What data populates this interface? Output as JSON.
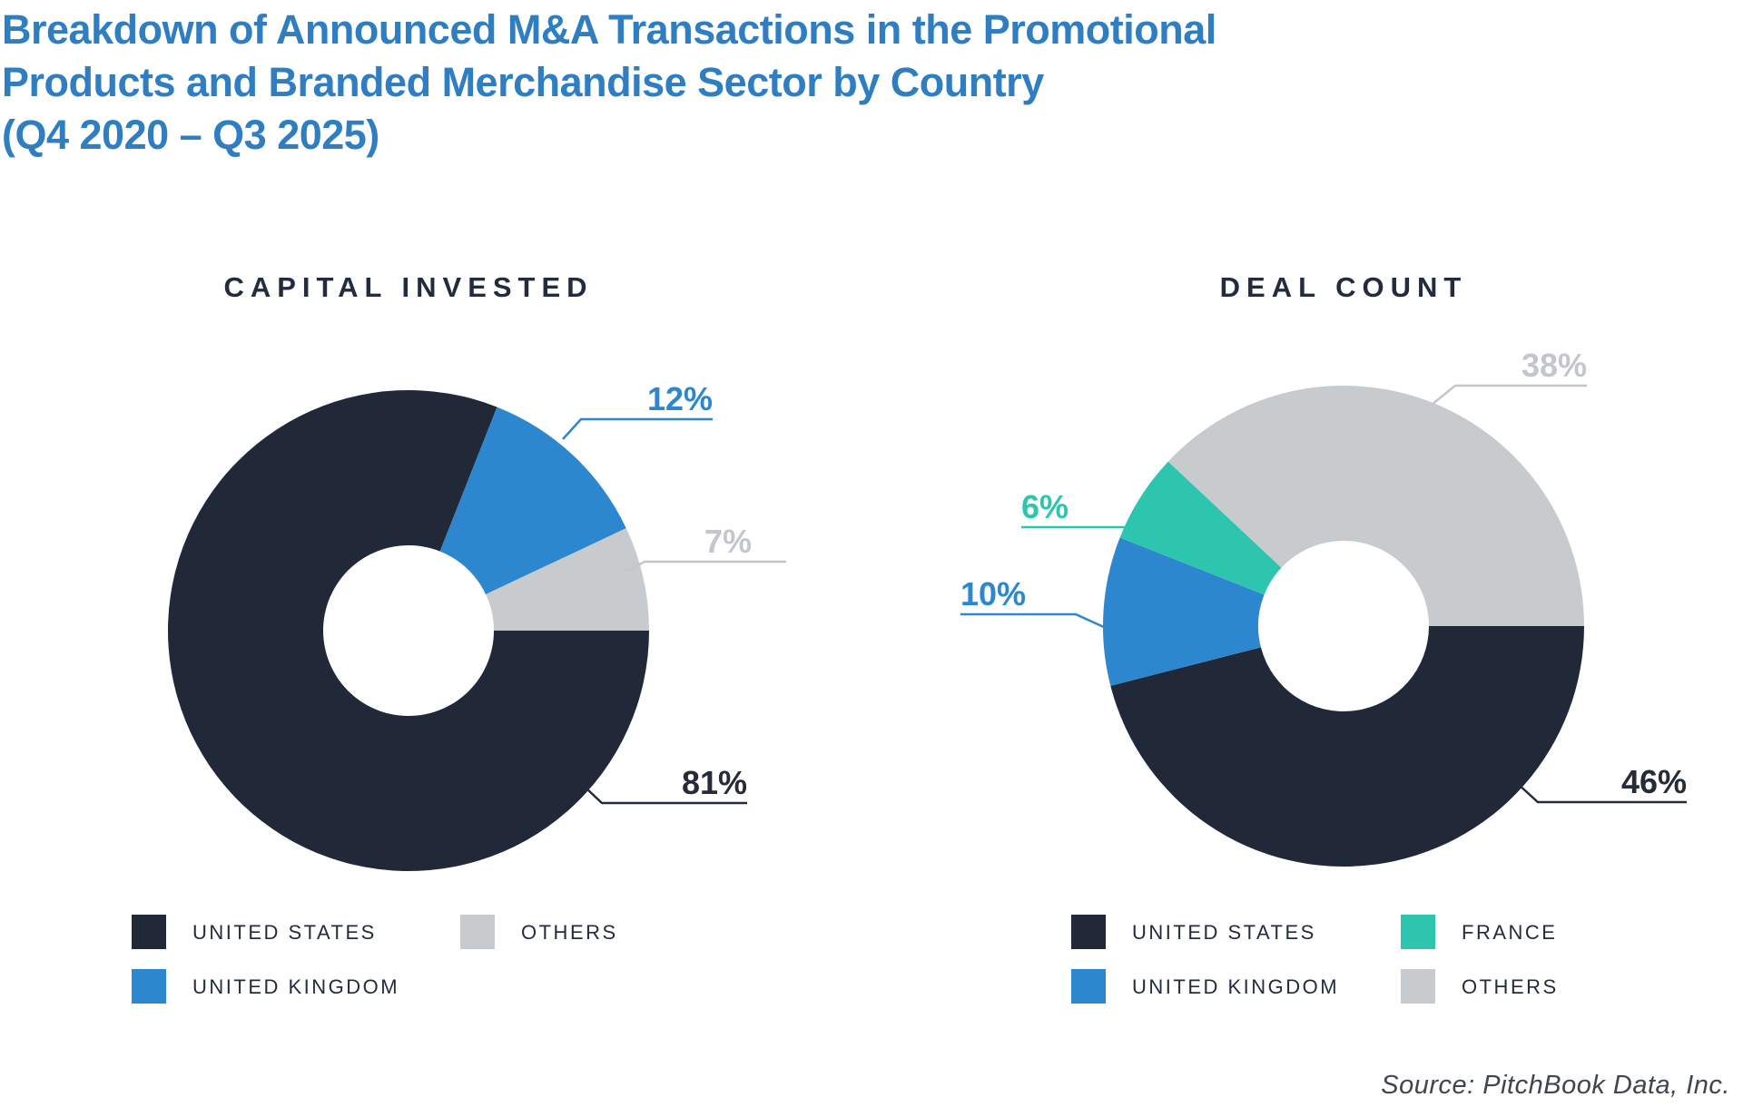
{
  "page_title": {
    "lines": [
      "Breakdown of Announced M&A Transactions in the Promotional",
      "Products and Branded Merchandise Sector by Country",
      "(Q4 2020 – Q3 2025)"
    ]
  },
  "colors": {
    "title_blue": "#2E7EC1",
    "navy": "#212939",
    "blue": "#2D87CE",
    "teal": "#2EC5AE",
    "gray": "#C8CBCE",
    "dark_label": "#262B38",
    "gray_label": "#C3C6CA",
    "navy_line": "#232B3E",
    "heading_navy": "#232B3E",
    "legend_text": "#232B3E",
    "source_gray": "#41454D",
    "background": "#FFFFFF"
  },
  "source_credit": "Source: PitchBook Data, Inc.",
  "chart_data": [
    {
      "type": "pie",
      "variant": "donut",
      "title": "CAPITAL INVESTED",
      "units": "percent",
      "start_angle_deg": 90,
      "direction": "clockwise",
      "slices": [
        {
          "label": "UNITED STATES",
          "value": 81,
          "color_key": "navy"
        },
        {
          "label": "UNITED KINGDOM",
          "value": 12,
          "color_key": "blue"
        },
        {
          "label": "OTHERS",
          "value": 7,
          "color_key": "gray"
        }
      ],
      "legend": [
        {
          "label": "UNITED STATES",
          "color_key": "navy",
          "col": 0,
          "row": 0
        },
        {
          "label": "OTHERS",
          "color_key": "gray",
          "col": 1,
          "row": 0
        },
        {
          "label": "UNITED KINGDOM",
          "color_key": "blue",
          "col": 0,
          "row": 1
        }
      ]
    },
    {
      "type": "pie",
      "variant": "donut",
      "title": "DEAL COUNT",
      "units": "percent",
      "start_angle_deg": 90,
      "direction": "clockwise",
      "slices": [
        {
          "label": "UNITED STATES",
          "value": 46,
          "color_key": "navy"
        },
        {
          "label": "UNITED KINGDOM",
          "value": 10,
          "color_key": "blue"
        },
        {
          "label": "FRANCE",
          "value": 6,
          "color_key": "teal"
        },
        {
          "label": "OTHERS",
          "value": 38,
          "color_key": "gray"
        }
      ],
      "legend": [
        {
          "label": "UNITED STATES",
          "color_key": "navy",
          "col": 0,
          "row": 0
        },
        {
          "label": "FRANCE",
          "color_key": "teal",
          "col": 1,
          "row": 0
        },
        {
          "label": "UNITED KINGDOM",
          "color_key": "blue",
          "col": 0,
          "row": 1
        },
        {
          "label": "OTHERS",
          "color_key": "gray",
          "col": 1,
          "row": 1
        }
      ]
    }
  ]
}
